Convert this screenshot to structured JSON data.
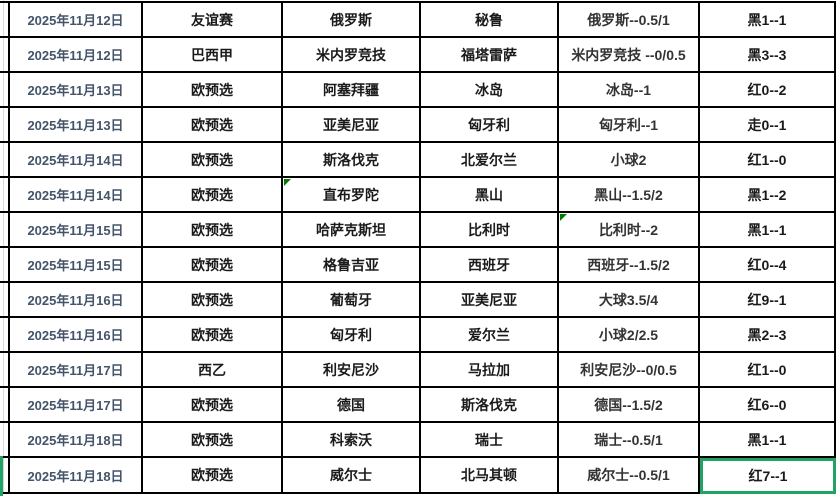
{
  "colors": {
    "date_text": "#44546A",
    "body_text": "#1a1a1a",
    "handicap_text": "#333333",
    "border": "#000000",
    "selection_green": "#21a366",
    "note_green": "#007b00",
    "gridline_gray": "#d9d9d9"
  },
  "table": {
    "rows": [
      {
        "date": "2025年11月12日",
        "league": "友谊赛",
        "home": "俄罗斯",
        "away": "秘鲁",
        "handicap": "俄罗斯--0.5/1",
        "result": "黑1--1"
      },
      {
        "date": "2025年11月12日",
        "league": "巴西甲",
        "home": "米内罗竞技",
        "away": "福塔雷萨",
        "handicap": "米内罗竞技  --0/0.5",
        "result": "黑3--3"
      },
      {
        "date": "2025年11月13日",
        "league": "欧预选",
        "home": "阿塞拜疆",
        "away": "冰岛",
        "handicap": "冰岛--1",
        "result": "红0--2"
      },
      {
        "date": "2025年11月13日",
        "league": "欧预选",
        "home": "亚美尼亚",
        "away": "匈牙利",
        "handicap": "匈牙利--1",
        "result": "走0--1"
      },
      {
        "date": "2025年11月14日",
        "league": "欧预选",
        "home": "斯洛伐克",
        "away": "北爱尔兰",
        "handicap": "小球2",
        "result": "红1--0"
      },
      {
        "date": "2025年11月14日",
        "league": "欧预选",
        "home": "直布罗陀",
        "away": "黑山",
        "handicap": "黑山--1.5/2",
        "result": "黑1--2",
        "note_home": true
      },
      {
        "date": "2025年11月15日",
        "league": "欧预选",
        "home": "哈萨克斯坦",
        "away": "比利时",
        "handicap": "比利时--2",
        "result": "黑1--1",
        "note_handicap": true
      },
      {
        "date": "2025年11月15日",
        "league": "欧预选",
        "home": "格鲁吉亚",
        "away": "西班牙",
        "handicap": "西班牙--1.5/2",
        "result": "红0--4"
      },
      {
        "date": "2025年11月16日",
        "league": "欧预选",
        "home": "葡萄牙",
        "away": "亚美尼亚",
        "handicap": "大球3.5/4",
        "result": "红9--1"
      },
      {
        "date": "2025年11月16日",
        "league": "欧预选",
        "home": "匈牙利",
        "away": "爱尔兰",
        "handicap": "小球2/2.5",
        "result": "黑2--3"
      },
      {
        "date": "2025年11月17日",
        "league": "西乙",
        "home": "利安尼沙",
        "away": "马拉加",
        "handicap": "利安尼沙--0/0.5",
        "result": "红1--0"
      },
      {
        "date": "2025年11月17日",
        "league": "欧预选",
        "home": "德国",
        "away": "斯洛伐克",
        "handicap": "德国--1.5/2",
        "result": "红6--0"
      },
      {
        "date": "2025年11月18日",
        "league": "欧预选",
        "home": "科索沃",
        "away": "瑞士",
        "handicap": "瑞士--0.5/1",
        "result": "黑1--1"
      },
      {
        "date": "2025年11月18日",
        "league": "欧预选",
        "home": "威尔士",
        "away": "北马其顿",
        "handicap": "威尔士--0.5/1",
        "result": "红7--1",
        "selected_result": true,
        "row_left_marker": true
      }
    ]
  }
}
